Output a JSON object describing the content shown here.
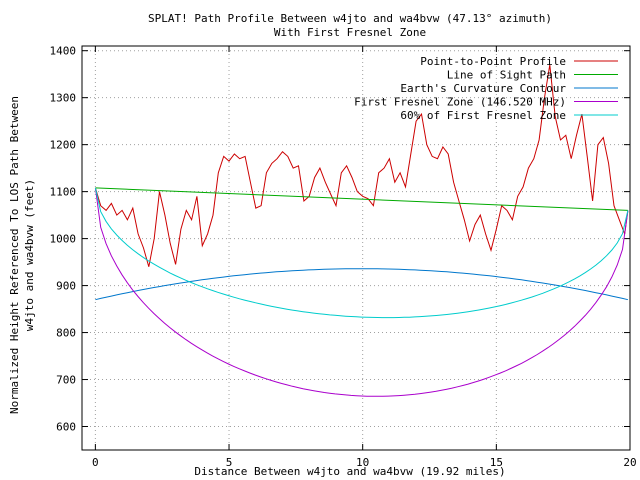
{
  "chart_data": {
    "type": "line",
    "title": "SPLAT! Path Profile Between w4jto and wa4bvw (47.13° azimuth)",
    "subtitle": "With First Fresnel Zone",
    "xlabel": "Distance Between w4jto and wa4bvw (19.92 miles)",
    "ylabel": "Normalized Height Referenced To LOS Path Between",
    "ylabel2": "w4jto and wa4bvw (feet)",
    "xlim": [
      -0.5,
      20
    ],
    "ylim": [
      550,
      1410
    ],
    "x_ticks": [
      "0",
      "5",
      "10",
      "15",
      "20"
    ],
    "y_ticks": [
      "600",
      "700",
      "800",
      "900",
      "1000",
      "1100",
      "1200",
      "1300",
      "1400"
    ],
    "grid": true,
    "legend_position": "top-right",
    "series": [
      {
        "name": "Point-to-Point Profile",
        "color": "#cc0000",
        "x": [
          0,
          0.2,
          0.4,
          0.6,
          0.8,
          1.0,
          1.2,
          1.4,
          1.6,
          1.8,
          2.0,
          2.2,
          2.4,
          2.6,
          2.8,
          3.0,
          3.2,
          3.4,
          3.6,
          3.8,
          4.0,
          4.2,
          4.4,
          4.6,
          4.8,
          5.0,
          5.2,
          5.4,
          5.6,
          5.8,
          6.0,
          6.2,
          6.4,
          6.6,
          6.8,
          7.0,
          7.2,
          7.4,
          7.6,
          7.8,
          8.0,
          8.2,
          8.4,
          8.6,
          8.8,
          9.0,
          9.2,
          9.4,
          9.6,
          9.8,
          10.0,
          10.2,
          10.4,
          10.6,
          10.8,
          11.0,
          11.2,
          11.4,
          11.6,
          11.8,
          12.0,
          12.2,
          12.4,
          12.6,
          12.8,
          13.0,
          13.2,
          13.4,
          13.6,
          13.8,
          14.0,
          14.2,
          14.4,
          14.6,
          14.8,
          15.0,
          15.2,
          15.4,
          15.6,
          15.8,
          16.0,
          16.2,
          16.4,
          16.6,
          16.8,
          17.0,
          17.2,
          17.4,
          17.6,
          17.8,
          18.0,
          18.2,
          18.4,
          18.6,
          18.8,
          19.0,
          19.2,
          19.4,
          19.6,
          19.8,
          19.92
        ],
        "values": [
          1108,
          1070,
          1060,
          1075,
          1050,
          1060,
          1040,
          1065,
          1010,
          980,
          940,
          1000,
          1100,
          1050,
          990,
          945,
          1020,
          1060,
          1040,
          1090,
          985,
          1010,
          1050,
          1140,
          1175,
          1165,
          1180,
          1170,
          1175,
          1120,
          1065,
          1070,
          1140,
          1160,
          1170,
          1185,
          1175,
          1150,
          1155,
          1080,
          1090,
          1130,
          1150,
          1120,
          1095,
          1070,
          1140,
          1155,
          1130,
          1100,
          1090,
          1085,
          1070,
          1140,
          1150,
          1170,
          1120,
          1140,
          1110,
          1180,
          1250,
          1265,
          1200,
          1175,
          1170,
          1195,
          1180,
          1120,
          1080,
          1040,
          995,
          1030,
          1050,
          1010,
          975,
          1020,
          1070,
          1060,
          1040,
          1090,
          1110,
          1150,
          1170,
          1210,
          1300,
          1370,
          1260,
          1210,
          1220,
          1170,
          1220,
          1265,
          1175,
          1080,
          1200,
          1215,
          1160,
          1070,
          1040,
          1010,
          1060
        ]
      },
      {
        "name": "Line of Sight Path",
        "color": "#00aa00",
        "x": [
          0,
          19.92
        ],
        "values": [
          1108,
          1060
        ]
      },
      {
        "name": "Earth's Curvature Contour",
        "color": "#0077cc",
        "function": "curvature",
        "endpoints": [
          870,
          870
        ],
        "mid_value": 936
      },
      {
        "name": "First Fresnel Zone (146.520 MHz)",
        "color": "#aa00cc",
        "function": "fresnel",
        "mid_value": 665
      },
      {
        "name": "60% of First Fresnel Zone",
        "color": "#00cccc",
        "function": "fresnel60",
        "mid_value": 833
      }
    ]
  }
}
